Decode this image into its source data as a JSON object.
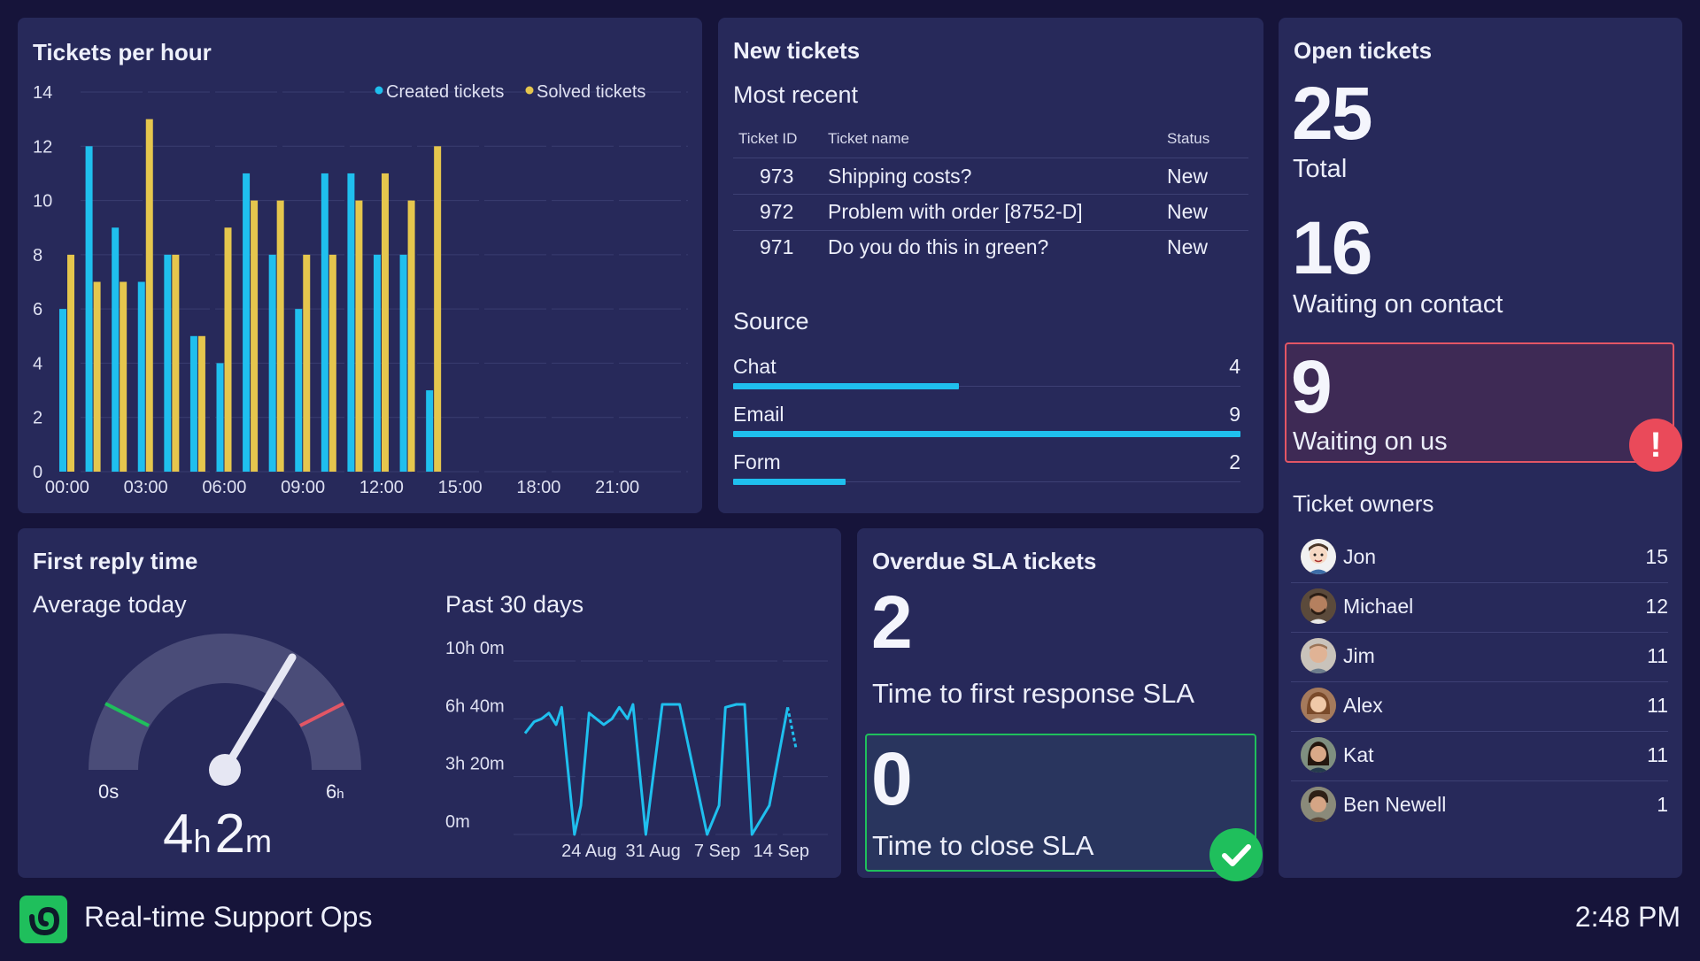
{
  "colors": {
    "background": "#16143a",
    "panel": "#27295a",
    "created": "#1fbfee",
    "solved": "#e5c64d",
    "alert": "#e35665",
    "ok": "#1fbf5c"
  },
  "tickets_per_hour": {
    "title": "Tickets per hour",
    "legend": {
      "created": "Created tickets",
      "solved": "Solved tickets"
    }
  },
  "new_tickets": {
    "title": "New tickets",
    "most_recent_label": "Most recent",
    "columns": [
      "Ticket ID",
      "Ticket name",
      "Status"
    ],
    "rows": [
      {
        "id": "973",
        "name": "Shipping costs?",
        "status": "New"
      },
      {
        "id": "972",
        "name": "Problem with order [8752-D]",
        "status": "New"
      },
      {
        "id": "971",
        "name": "Do you do this in green?",
        "status": "New"
      }
    ],
    "source_label": "Source",
    "sources": [
      {
        "label": "Chat",
        "value": 4
      },
      {
        "label": "Email",
        "value": 9
      },
      {
        "label": "Form",
        "value": 2
      }
    ],
    "source_max": 9
  },
  "open_tickets": {
    "title": "Open tickets",
    "total_value": "25",
    "total_label": "Total",
    "waiting_contact_value": "16",
    "waiting_contact_label": "Waiting on contact",
    "waiting_us_value": "9",
    "waiting_us_label": "Waiting on us",
    "alert_symbol": "!",
    "owners_label": "Ticket owners",
    "owners": [
      {
        "name": "Jon",
        "count": "15"
      },
      {
        "name": "Michael",
        "count": "12"
      },
      {
        "name": "Jim",
        "count": "11"
      },
      {
        "name": "Alex",
        "count": "11"
      },
      {
        "name": "Kat",
        "count": "11"
      },
      {
        "name": "Ben Newell",
        "count": "1"
      }
    ]
  },
  "first_reply": {
    "title": "First reply time",
    "average_label": "Average today",
    "gauge_min_label": "0s",
    "gauge_max_num": "6",
    "gauge_max_unit": "h",
    "gauge_value_hours": 4.03,
    "avg_hours": "4",
    "avg_hours_unit": "h",
    "avg_minutes": "2",
    "avg_minutes_unit": "m",
    "past_label": "Past 30 days"
  },
  "overdue_sla": {
    "title": "Overdue SLA tickets",
    "first_response_value": "2",
    "first_response_label": "Time to first response SLA",
    "close_value": "0",
    "close_label": "Time to close SLA"
  },
  "footer": {
    "title": "Real-time Support Ops",
    "time": "2:48 PM"
  },
  "chart_data": [
    {
      "type": "bar",
      "title": "Tickets per hour",
      "xlabel": "",
      "ylabel": "",
      "ylim": [
        0,
        14
      ],
      "yticks": [
        0,
        2,
        4,
        6,
        8,
        10,
        12,
        14
      ],
      "xticks": [
        "00:00",
        "03:00",
        "06:00",
        "09:00",
        "12:00",
        "15:00",
        "18:00",
        "21:00"
      ],
      "hours": 24,
      "series": [
        {
          "name": "Created tickets",
          "values": [
            6,
            12,
            9,
            7,
            8,
            5,
            4,
            11,
            8,
            6,
            11,
            11,
            8,
            8,
            3
          ]
        },
        {
          "name": "Solved tickets",
          "values": [
            8,
            7,
            7,
            13,
            8,
            5,
            9,
            10,
            10,
            8,
            8,
            10,
            11,
            10,
            12
          ]
        }
      ]
    },
    {
      "type": "line",
      "title": "Past 30 days",
      "ylim": [
        0,
        600
      ],
      "yticks": [
        {
          "value": 0,
          "label": "0m"
        },
        {
          "value": 200,
          "label": "3h 20m"
        },
        {
          "value": 400,
          "label": "6h 40m"
        },
        {
          "value": 600,
          "label": "10h 0m"
        }
      ],
      "xticks": [
        {
          "day": 7,
          "label": "24 Aug"
        },
        {
          "day": 14,
          "label": "31 Aug"
        },
        {
          "day": 21,
          "label": "7 Sep"
        },
        {
          "day": 28,
          "label": "14 Sep"
        }
      ],
      "x": [
        0,
        1,
        1.8,
        2.6,
        3.4,
        4,
        5.4,
        6.1,
        7,
        8.6,
        9.5,
        10.3,
        11.2,
        11.8,
        13.2,
        15,
        16.9,
        19.9,
        21.2,
        21.9,
        23.1,
        24,
        24.8,
        26.7,
        28.7,
        29.6
      ],
      "values": [
        350,
        390,
        400,
        420,
        380,
        440,
        0,
        100,
        420,
        380,
        400,
        440,
        400,
        450,
        0,
        450,
        450,
        0,
        100,
        440,
        450,
        450,
        0,
        100,
        440,
        300
      ],
      "forecast_from": 28.7
    }
  ]
}
